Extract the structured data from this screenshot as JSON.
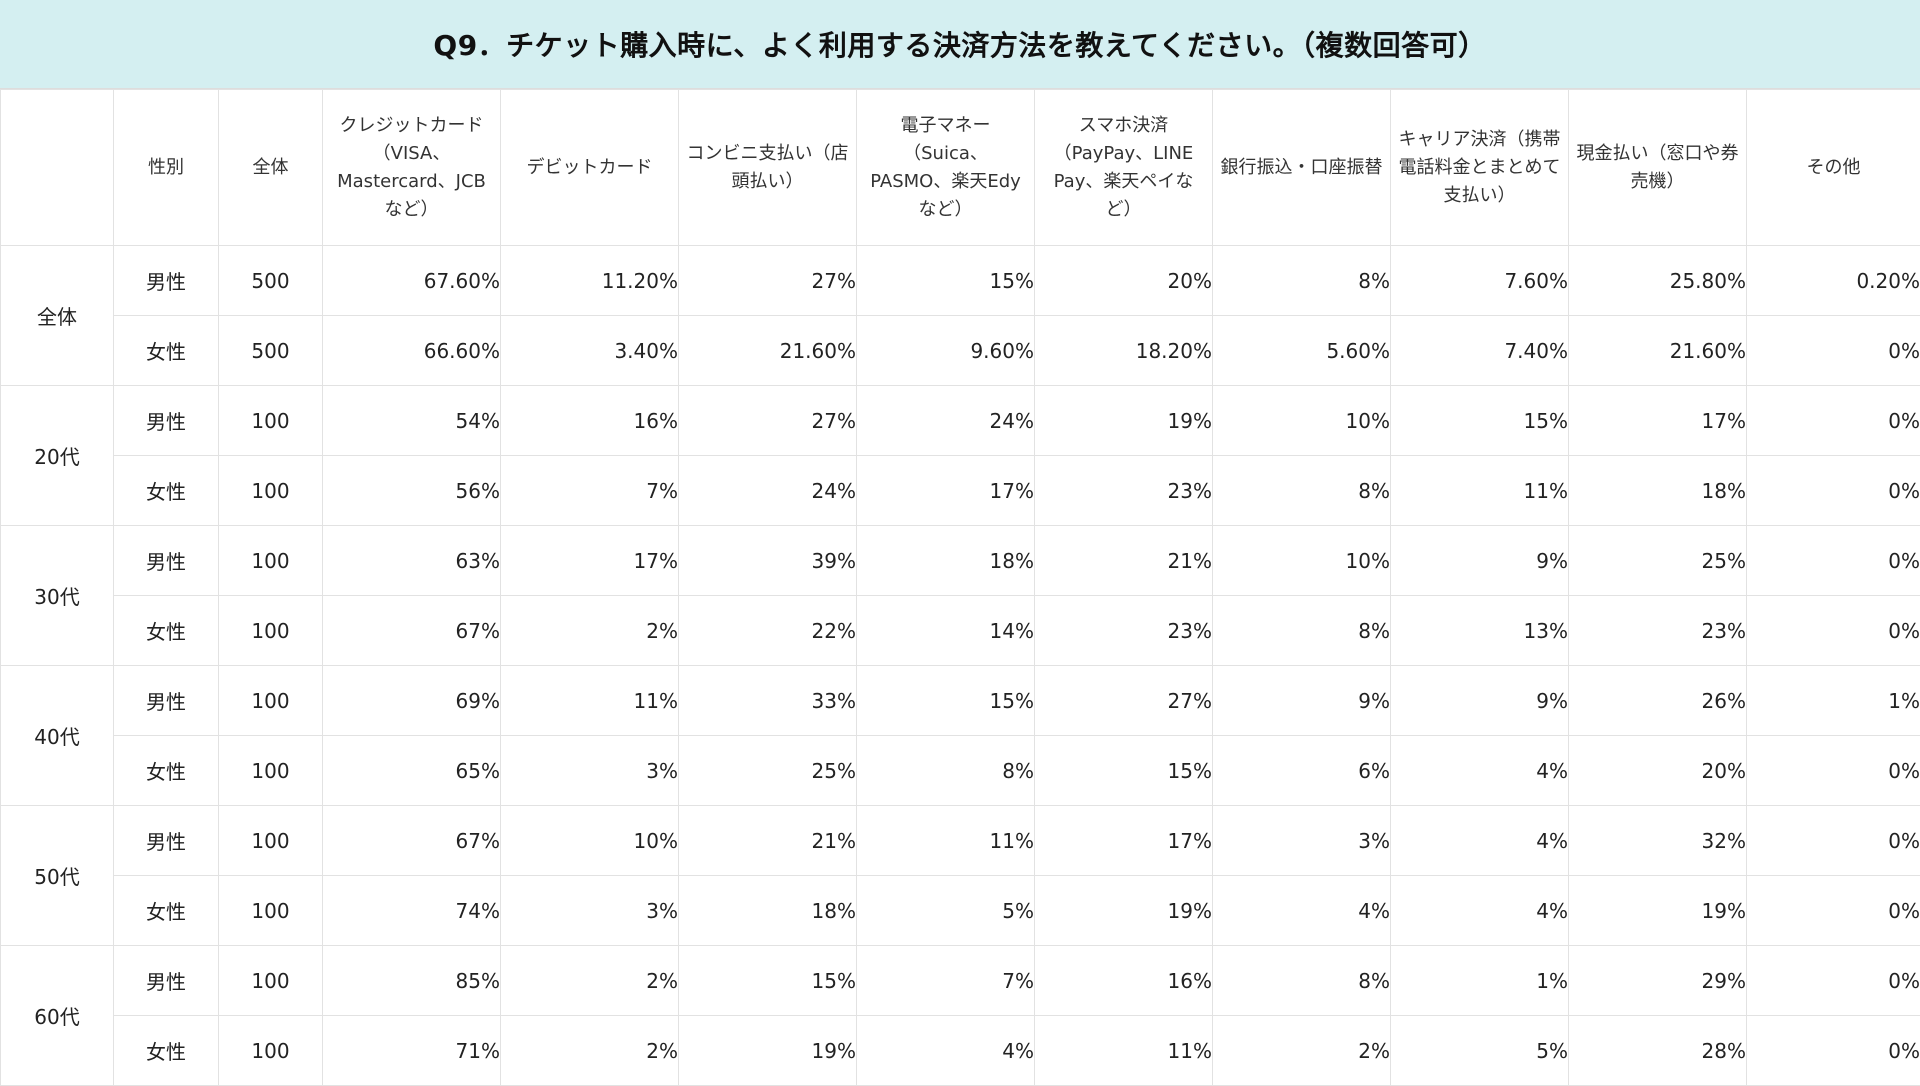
{
  "title": "Q9．チケット購入時に、よく利用する決済方法を教えてください。（複数回答可）",
  "chart_data": {
    "type": "table",
    "title": "Q9．チケット購入時に、よく利用する決済方法を教えてください。（複数回答可）",
    "header_corner": "",
    "gender_header": "性別",
    "n_header": "全体",
    "columns": [
      "クレジットカード（VISA、Mastercard、JCBなど）",
      "デビットカード",
      "コンビニ支払い（店頭払い）",
      "電子マネー（Suica、PASMO、楽天Edyなど）",
      "スマホ決済（PayPay、LINE Pay、楽天ペイなど）",
      "銀行振込・口座振替",
      "キャリア決済（携帯電話料金とまとめて支払い）",
      "現金払い（窓口や券売機）",
      "その他"
    ],
    "groups": [
      {
        "label": "全体",
        "rows": [
          {
            "gender": "男性",
            "n": "500",
            "values": [
              "67.60%",
              "11.20%",
              "27%",
              "15%",
              "20%",
              "8%",
              "7.60%",
              "25.80%",
              "0.20%"
            ]
          },
          {
            "gender": "女性",
            "n": "500",
            "values": [
              "66.60%",
              "3.40%",
              "21.60%",
              "9.60%",
              "18.20%",
              "5.60%",
              "7.40%",
              "21.60%",
              "0%"
            ]
          }
        ]
      },
      {
        "label": "20代",
        "rows": [
          {
            "gender": "男性",
            "n": "100",
            "values": [
              "54%",
              "16%",
              "27%",
              "24%",
              "19%",
              "10%",
              "15%",
              "17%",
              "0%"
            ]
          },
          {
            "gender": "女性",
            "n": "100",
            "values": [
              "56%",
              "7%",
              "24%",
              "17%",
              "23%",
              "8%",
              "11%",
              "18%",
              "0%"
            ]
          }
        ]
      },
      {
        "label": "30代",
        "rows": [
          {
            "gender": "男性",
            "n": "100",
            "values": [
              "63%",
              "17%",
              "39%",
              "18%",
              "21%",
              "10%",
              "9%",
              "25%",
              "0%"
            ]
          },
          {
            "gender": "女性",
            "n": "100",
            "values": [
              "67%",
              "2%",
              "22%",
              "14%",
              "23%",
              "8%",
              "13%",
              "23%",
              "0%"
            ]
          }
        ]
      },
      {
        "label": "40代",
        "rows": [
          {
            "gender": "男性",
            "n": "100",
            "values": [
              "69%",
              "11%",
              "33%",
              "15%",
              "27%",
              "9%",
              "9%",
              "26%",
              "1%"
            ]
          },
          {
            "gender": "女性",
            "n": "100",
            "values": [
              "65%",
              "3%",
              "25%",
              "8%",
              "15%",
              "6%",
              "4%",
              "20%",
              "0%"
            ]
          }
        ]
      },
      {
        "label": "50代",
        "rows": [
          {
            "gender": "男性",
            "n": "100",
            "values": [
              "67%",
              "10%",
              "21%",
              "11%",
              "17%",
              "3%",
              "4%",
              "32%",
              "0%"
            ]
          },
          {
            "gender": "女性",
            "n": "100",
            "values": [
              "74%",
              "3%",
              "18%",
              "5%",
              "19%",
              "4%",
              "4%",
              "19%",
              "0%"
            ]
          }
        ]
      },
      {
        "label": "60代",
        "rows": [
          {
            "gender": "男性",
            "n": "100",
            "values": [
              "85%",
              "2%",
              "15%",
              "7%",
              "16%",
              "8%",
              "1%",
              "29%",
              "0%"
            ]
          },
          {
            "gender": "女性",
            "n": "100",
            "values": [
              "71%",
              "2%",
              "19%",
              "4%",
              "11%",
              "2%",
              "5%",
              "28%",
              "0%"
            ]
          }
        ]
      }
    ]
  },
  "colors": {
    "title_background": "#d4eff1",
    "grid_lines": "#e2e2e2"
  }
}
